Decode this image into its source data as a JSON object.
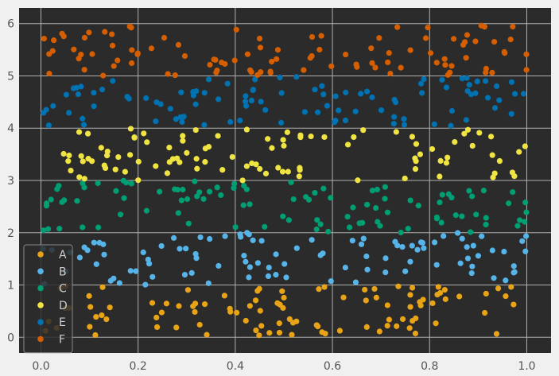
{
  "chart_data": {
    "type": "scatter",
    "title": "",
    "xlabel": "",
    "ylabel": "",
    "xlim": [
      -0.045,
      1.05
    ],
    "ylim": [
      -0.3,
      6.3
    ],
    "x_ticks": [
      0.0,
      0.2,
      0.4,
      0.6,
      0.8,
      1.0
    ],
    "x_tick_labels": [
      "0.0",
      "0.2",
      "0.4",
      "0.6",
      "0.8",
      "1.0"
    ],
    "y_ticks": [
      0,
      1,
      2,
      3,
      4,
      5,
      6
    ],
    "y_tick_labels": [
      "0",
      "1",
      "2",
      "3",
      "4",
      "5",
      "6"
    ],
    "grid": true,
    "legend_position": "lower-left",
    "style": {
      "figure_background": "#f0f0f0",
      "axes_background": "#2b2b2b",
      "grid_color": "#b0b0b0",
      "legend_background": "#2b2b2b",
      "legend_border": "#8a8a8a"
    },
    "series": [
      {
        "name": "A",
        "color": "#e8a317",
        "band": [
          0,
          1
        ]
      },
      {
        "name": "B",
        "color": "#56b4e9",
        "band": [
          1,
          2
        ]
      },
      {
        "name": "C",
        "color": "#009e73",
        "band": [
          2,
          3
        ]
      },
      {
        "name": "D",
        "color": "#f0e442",
        "band": [
          3,
          4
        ]
      },
      {
        "name": "E",
        "color": "#0072b2",
        "band": [
          4,
          5
        ]
      },
      {
        "name": "F",
        "color": "#d55e00",
        "band": [
          5,
          6
        ]
      }
    ],
    "points_per_series": 100
  }
}
